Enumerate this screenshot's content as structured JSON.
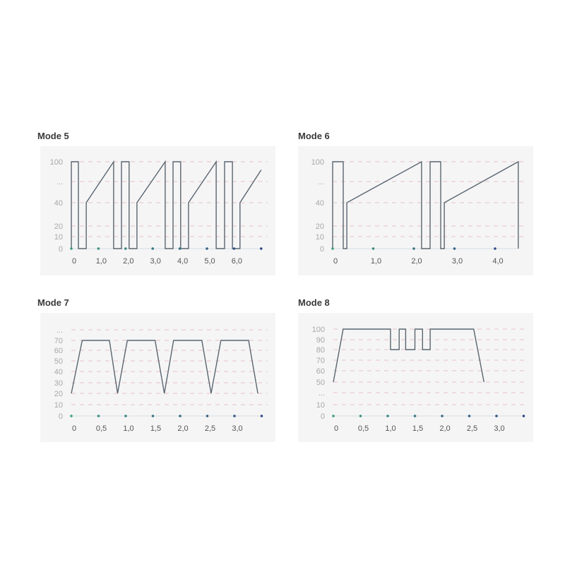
{
  "colors": {
    "line": "#5a6670",
    "grid": "#e3b0b4",
    "axis": "#d6dde0",
    "dot_start": "#3f9c80",
    "dot_end": "#2f4a86",
    "panel_bg": "#f5f5f6"
  },
  "chart_data": [
    {
      "type": "line",
      "title": "Mode 5",
      "grid": true,
      "y_ticks": [
        "100",
        "...",
        "40",
        "20",
        "10",
        "0"
      ],
      "x_ticks": [
        "0",
        "1,0",
        "2,0",
        "3,0",
        "4,0",
        "5,0",
        "6,0"
      ],
      "x_tick_values": [
        0,
        1,
        2,
        3,
        4,
        5,
        6
      ],
      "axis_dots": [
        0,
        1,
        2,
        3,
        4,
        5,
        6,
        7
      ],
      "points": [
        [
          0,
          0
        ],
        [
          0,
          100
        ],
        [
          0.26,
          100
        ],
        [
          0.26,
          0
        ],
        [
          0.55,
          0
        ],
        [
          0.55,
          40
        ],
        [
          1.56,
          100
        ],
        [
          1.56,
          0
        ],
        [
          1.85,
          0
        ],
        [
          1.85,
          100
        ],
        [
          2.13,
          100
        ],
        [
          2.13,
          0
        ],
        [
          2.42,
          0
        ],
        [
          2.42,
          40
        ],
        [
          3.46,
          100
        ],
        [
          3.46,
          0
        ],
        [
          3.75,
          0
        ],
        [
          3.75,
          100
        ],
        [
          4.03,
          100
        ],
        [
          4.03,
          0
        ],
        [
          4.32,
          0
        ],
        [
          4.32,
          40
        ],
        [
          5.34,
          100
        ],
        [
          5.34,
          0
        ],
        [
          5.65,
          0
        ],
        [
          5.65,
          100
        ],
        [
          5.94,
          100
        ],
        [
          5.94,
          0
        ],
        [
          6.22,
          0
        ],
        [
          6.22,
          40
        ],
        [
          7.0,
          88
        ]
      ]
    },
    {
      "type": "line",
      "title": "Mode 6",
      "grid": true,
      "y_ticks": [
        "100",
        "...",
        "40",
        "20",
        "10",
        "0"
      ],
      "x_ticks": [
        "0",
        "1,0",
        "2,0",
        "3,0",
        "4,0"
      ],
      "x_tick_values": [
        0,
        1,
        2,
        3,
        4
      ],
      "axis_dots": [
        0,
        1,
        2,
        3,
        4
      ],
      "points": [
        [
          0,
          0
        ],
        [
          0,
          100
        ],
        [
          0.26,
          100
        ],
        [
          0.26,
          0
        ],
        [
          0.35,
          0
        ],
        [
          0.35,
          40
        ],
        [
          2.19,
          100
        ],
        [
          2.19,
          0
        ],
        [
          2.4,
          0
        ],
        [
          2.4,
          100
        ],
        [
          2.66,
          100
        ],
        [
          2.66,
          0
        ],
        [
          2.75,
          0
        ],
        [
          2.75,
          40
        ],
        [
          4.57,
          100
        ],
        [
          4.57,
          0
        ]
      ]
    },
    {
      "type": "line",
      "title": "Mode 7",
      "grid": true,
      "y_ticks": [
        "...",
        "70",
        "60",
        "50",
        "40",
        "30",
        "20",
        "10",
        "0"
      ],
      "x_ticks": [
        "0",
        "0,5",
        "1,0",
        "1,5",
        "2,0",
        "2,5",
        "3,0"
      ],
      "x_tick_values": [
        0,
        0.5,
        1,
        1.5,
        2,
        2.5,
        3
      ],
      "axis_dots": [
        0,
        0.5,
        1,
        1.5,
        2,
        2.5,
        3,
        3.5
      ],
      "points": [
        [
          0,
          20
        ],
        [
          0.2,
          70
        ],
        [
          0.7,
          70
        ],
        [
          0.85,
          20
        ],
        [
          1.03,
          70
        ],
        [
          1.54,
          70
        ],
        [
          1.71,
          20
        ],
        [
          1.88,
          70
        ],
        [
          2.4,
          70
        ],
        [
          2.57,
          20
        ],
        [
          2.75,
          70
        ],
        [
          3.26,
          70
        ],
        [
          3.43,
          20
        ]
      ]
    },
    {
      "type": "line",
      "title": "Mode 8",
      "grid": true,
      "y_ticks": [
        "100",
        "90",
        "80",
        "70",
        "60",
        "50",
        "...",
        "10",
        "0"
      ],
      "x_ticks": [
        "0",
        "0,5",
        "1,0",
        "1,5",
        "2,0",
        "2,5",
        "3,0"
      ],
      "x_tick_values": [
        0,
        0.5,
        1,
        1.5,
        2,
        2.5,
        3
      ],
      "axis_dots": [
        0,
        0.5,
        1,
        1.5,
        2,
        2.5,
        3,
        3.5
      ],
      "points": [
        [
          0,
          50
        ],
        [
          0.18,
          100
        ],
        [
          1.05,
          100
        ],
        [
          1.05,
          80
        ],
        [
          1.21,
          80
        ],
        [
          1.21,
          100
        ],
        [
          1.33,
          100
        ],
        [
          1.33,
          80
        ],
        [
          1.5,
          80
        ],
        [
          1.5,
          100
        ],
        [
          1.64,
          100
        ],
        [
          1.64,
          80
        ],
        [
          1.78,
          80
        ],
        [
          1.78,
          100
        ],
        [
          2.58,
          100
        ],
        [
          2.77,
          50
        ]
      ]
    }
  ]
}
